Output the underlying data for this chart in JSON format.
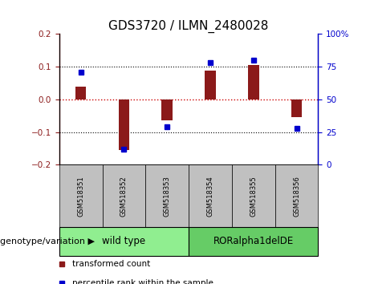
{
  "title": "GDS3720 / ILMN_2480028",
  "samples": [
    "GSM518351",
    "GSM518352",
    "GSM518353",
    "GSM518354",
    "GSM518355",
    "GSM518356"
  ],
  "red_values": [
    0.04,
    -0.155,
    -0.063,
    0.087,
    0.105,
    -0.055
  ],
  "blue_pct": [
    71,
    12,
    29,
    78,
    80,
    28
  ],
  "ylim_left": [
    -0.2,
    0.2
  ],
  "ylim_right": [
    0,
    100
  ],
  "yticks_left": [
    -0.2,
    -0.1,
    0.0,
    0.1,
    0.2
  ],
  "yticks_right": [
    0,
    25,
    50,
    75,
    100
  ],
  "yticklabels_right": [
    "0",
    "25",
    "50",
    "75",
    "100%"
  ],
  "groups": [
    {
      "label": "wild type",
      "indices": [
        0,
        1,
        2
      ],
      "color": "#90EE90"
    },
    {
      "label": "RORalpha1delDE",
      "indices": [
        3,
        4,
        5
      ],
      "color": "#66CC66"
    }
  ],
  "bar_color": "#8B1A1A",
  "blue_color": "#0000CD",
  "red_hline_color": "#CC0000",
  "dotted_color": "black",
  "legend_red_label": "transformed count",
  "legend_blue_label": "percentile rank within the sample",
  "genotype_label": "genotype/variation",
  "title_fontsize": 11,
  "tick_fontsize": 7.5,
  "group_label_fontsize": 8.5,
  "legend_fontsize": 7.5,
  "genotype_fontsize": 8,
  "sample_fontsize": 6,
  "bar_width": 0.25
}
